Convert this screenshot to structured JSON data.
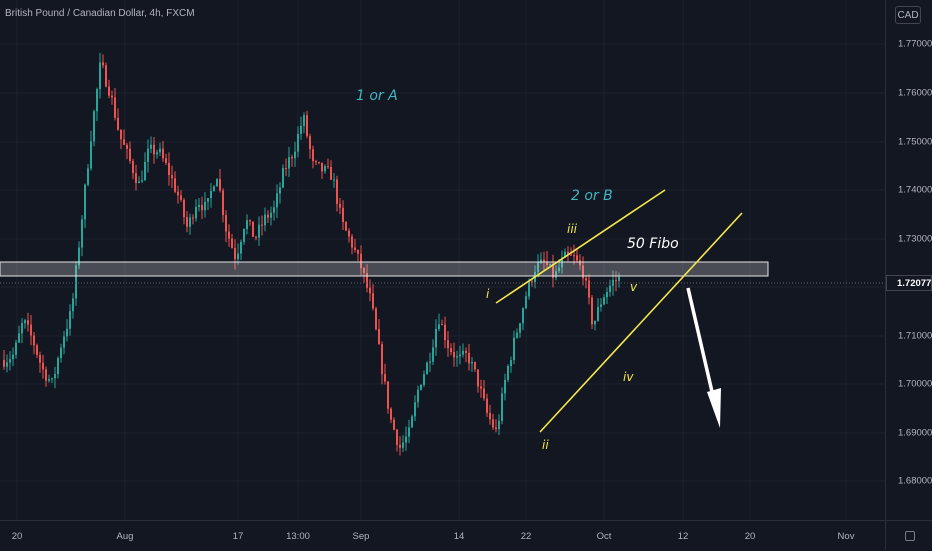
{
  "chart": {
    "title": "British Pound / Canadian Dollar, 4h, FXCM",
    "currency_button": "CAD",
    "current_price": "1.72077",
    "price_ticks": [
      "1.77000",
      "1.76000",
      "1.75000",
      "1.74000",
      "1.73000",
      "1.71000",
      "1.70000",
      "1.69000",
      "1.68000"
    ],
    "time_ticks": [
      "20",
      "Aug",
      "17",
      "13:00",
      "Sep",
      "14",
      "22",
      "Oct",
      "12",
      "20",
      "Nov"
    ],
    "annotations": {
      "wave_a": "1 or A",
      "wave_b": "2 or B",
      "fibo": "50 Fibo",
      "w_i": "i",
      "w_ii": "ii",
      "w_iii": "iii",
      "w_iv": "iv",
      "w_v": "v"
    },
    "colors": {
      "background": "#131722",
      "bull": "#26a69a",
      "bear": "#ef5350",
      "channel": "#f5e84a",
      "wave_label": "#3fb5bf",
      "zone": "#d8d8d8",
      "arrow": "#ffffff"
    }
  },
  "chart_data": {
    "type": "candlestick",
    "symbol": "GBPCAD",
    "timeframe": "4h",
    "price_range": [
      1.678,
      1.7745
    ],
    "path": [
      1.705,
      1.706,
      1.713,
      1.709,
      1.703,
      1.7,
      1.709,
      1.715,
      1.733,
      1.751,
      1.766,
      1.76,
      1.751,
      1.746,
      1.741,
      1.748,
      1.748,
      1.744,
      1.739,
      1.732,
      1.738,
      1.736,
      1.744,
      1.732,
      1.726,
      1.734,
      1.73,
      1.734,
      1.736,
      1.744,
      1.748,
      1.755,
      1.745,
      1.744,
      1.743,
      1.733,
      1.729,
      1.724,
      1.717,
      1.705,
      1.693,
      1.687,
      1.69,
      1.7,
      1.705,
      1.714,
      1.708,
      1.705,
      1.706,
      1.701,
      1.694,
      1.69,
      1.702,
      1.71,
      1.718,
      1.724,
      1.725,
      1.722,
      1.726,
      1.726,
      1.723,
      1.712,
      1.718,
      1.721,
      1.722
    ]
  }
}
